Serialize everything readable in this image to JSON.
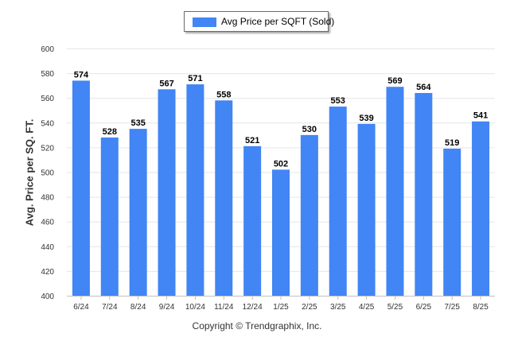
{
  "chart_data": {
    "type": "bar",
    "categories": [
      "6/24",
      "7/24",
      "8/24",
      "9/24",
      "10/24",
      "11/24",
      "12/24",
      "1/25",
      "2/25",
      "3/25",
      "4/25",
      "5/25",
      "6/25",
      "7/25",
      "8/25"
    ],
    "series": [
      {
        "name": "Avg Price per SQFT (Sold)",
        "values": [
          574,
          528,
          535,
          567,
          571,
          558,
          521,
          502,
          530,
          553,
          539,
          569,
          564,
          519,
          541
        ]
      }
    ],
    "ylabel": "Avg. Price per SQ. FT.",
    "ylim": [
      400,
      600
    ],
    "yticks": [
      400,
      420,
      440,
      460,
      480,
      500,
      520,
      540,
      560,
      580,
      600
    ],
    "grid": true,
    "legend_position": "top-center",
    "bar_color": "#4285f4"
  },
  "footer": {
    "copyright": "Copyright © Trendgraphix, Inc."
  }
}
